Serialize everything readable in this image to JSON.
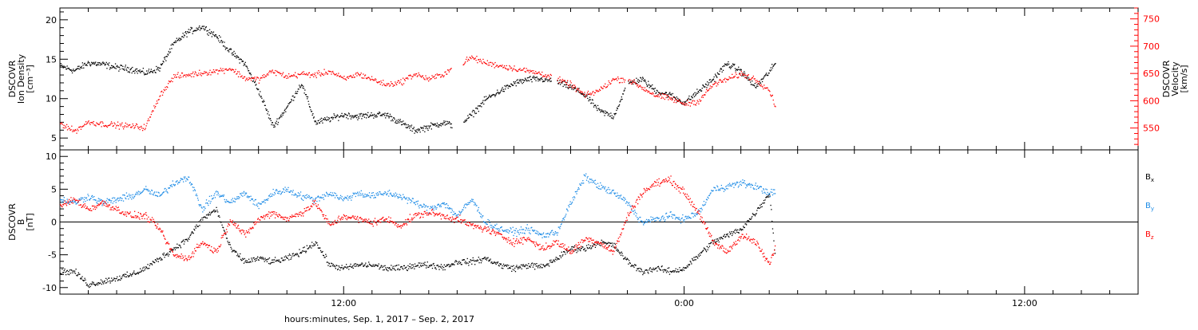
{
  "colors": {
    "black": "#000000",
    "red": "#ff0000",
    "blue": "#1e8ce6",
    "axis": "#000000"
  },
  "figure": {
    "xlabel": "hours:minutes, Sep. 1, 2017 – Sep. 2, 2017",
    "x_tick_labels": [
      "12:00",
      "0:00",
      "12:00"
    ],
    "x_tick_hours": [
      12,
      24,
      36
    ],
    "x_range_hours": [
      2.0,
      40.0
    ],
    "x_unit": "hours since Sep. 1, 2017 00:00"
  },
  "chart_data": [
    {
      "type": "scatter",
      "panel": "plasma",
      "left_axis": {
        "label_lines": [
          "DSCOVR",
          "Ion Density",
          "[cm⁻³]"
        ],
        "ylim": [
          3.5,
          21.5
        ],
        "major_ticks": [
          5,
          10,
          15,
          20
        ],
        "tick_labels": [
          "5",
          "10",
          "15",
          "20"
        ]
      },
      "right_axis": {
        "label_lines": [
          "DSCOVR",
          "Velocity",
          "[km/s]"
        ],
        "ylim": [
          510,
          770
        ],
        "major_ticks": [
          550,
          600,
          650,
          700,
          750
        ],
        "tick_labels": [
          "550",
          "600",
          "650",
          "700",
          "750"
        ],
        "color": "red"
      },
      "grid": false,
      "series": [
        {
          "name": "",
          "color": "black",
          "axis": "left",
          "spread": 0.6,
          "x": [
            2.0,
            2.5,
            3.0,
            3.5,
            4.0,
            4.5,
            5.0,
            5.5,
            6.0,
            6.5,
            7.0,
            7.5,
            8.0,
            8.5,
            9.0,
            9.5,
            10.0,
            10.5,
            11.0,
            11.5,
            12.0,
            12.5,
            13.0,
            13.5,
            14.0,
            14.5,
            15.0,
            15.5,
            16.0,
            16.5,
            17.0,
            17.5,
            18.0,
            18.5,
            19.0,
            19.5,
            20.0,
            20.5,
            21.0,
            21.5,
            22.0,
            22.5,
            23.0,
            23.5,
            24.0,
            24.5,
            25.0,
            25.5,
            26.0,
            26.5,
            27.0,
            27.2
          ],
          "y": [
            14.2,
            13.6,
            14.6,
            14.4,
            14.0,
            13.8,
            13.3,
            13.9,
            17.0,
            18.5,
            19.2,
            18.0,
            16.0,
            14.5,
            11.0,
            6.5,
            9.0,
            12.0,
            7.0,
            7.5,
            8.0,
            7.8,
            8.0,
            8.0,
            7.0,
            6.0,
            6.5,
            7.0,
            6.5,
            8.0,
            10.0,
            11.0,
            12.0,
            12.5,
            12.5,
            12.2,
            11.5,
            10.5,
            8.5,
            7.8,
            12.0,
            12.5,
            11.0,
            10.5,
            9.5,
            11.0,
            12.5,
            14.5,
            13.5,
            11.5,
            13.5,
            14.5
          ],
          "gaps": [
            [
              15.8,
              16.2
            ],
            [
              19.3,
              19.5
            ],
            [
              21.9,
              22.0
            ]
          ]
        },
        {
          "name": "",
          "color": "red",
          "axis": "right",
          "spread": 8,
          "x": [
            2.0,
            2.5,
            3.0,
            3.5,
            4.0,
            4.5,
            5.0,
            5.5,
            6.0,
            6.5,
            7.0,
            7.5,
            8.0,
            8.5,
            9.0,
            9.5,
            10.0,
            10.5,
            11.0,
            11.5,
            12.0,
            12.5,
            13.0,
            13.5,
            14.0,
            14.5,
            15.0,
            15.5,
            16.0,
            16.5,
            17.0,
            17.5,
            18.0,
            18.5,
            19.0,
            19.5,
            20.0,
            20.5,
            21.0,
            21.5,
            22.0,
            22.5,
            23.0,
            23.5,
            24.0,
            24.5,
            25.0,
            25.5,
            26.0,
            26.5,
            27.0,
            27.2
          ],
          "y": [
            560,
            545,
            562,
            558,
            556,
            554,
            552,
            610,
            645,
            648,
            652,
            655,
            660,
            642,
            640,
            655,
            645,
            650,
            648,
            655,
            640,
            650,
            640,
            630,
            635,
            650,
            640,
            650,
            665,
            680,
            670,
            665,
            660,
            655,
            650,
            640,
            630,
            610,
            620,
            640,
            640,
            625,
            610,
            605,
            595,
            600,
            630,
            640,
            650,
            640,
            620,
            590
          ],
          "gaps": [
            [
              15.8,
              16.2
            ],
            [
              19.3,
              19.5
            ],
            [
              21.9,
              22.0
            ]
          ]
        }
      ]
    },
    {
      "type": "scatter",
      "panel": "magnetic",
      "left_axis": {
        "label_lines": [
          "DSCOVR",
          "B",
          "[nT]"
        ],
        "ylim": [
          -11,
          11
        ],
        "major_ticks": [
          -10,
          -5,
          0,
          5,
          10
        ],
        "tick_labels": [
          "-10",
          "-5",
          "0",
          "5",
          "10"
        ]
      },
      "zero_line": true,
      "grid": false,
      "series": [
        {
          "name": "Bx",
          "color": "black",
          "spread": 0.7,
          "x": [
            2.0,
            2.5,
            3.0,
            3.5,
            4.0,
            4.5,
            5.0,
            5.5,
            6.0,
            6.5,
            7.0,
            7.5,
            8.0,
            8.5,
            9.0,
            9.5,
            10.0,
            10.5,
            11.0,
            11.5,
            12.0,
            12.5,
            13.0,
            13.5,
            14.0,
            14.5,
            15.0,
            15.5,
            16.0,
            16.5,
            17.0,
            17.5,
            18.0,
            18.5,
            19.0,
            19.5,
            20.0,
            20.5,
            21.0,
            21.5,
            22.0,
            22.5,
            23.0,
            23.5,
            24.0,
            24.5,
            25.0,
            25.5,
            26.0,
            26.5,
            27.0,
            27.2
          ],
          "y": [
            -7.5,
            -7.5,
            -9.5,
            -9.0,
            -8.5,
            -8.0,
            -7.0,
            -5.5,
            -4.0,
            -2.5,
            0.5,
            2.0,
            -4.0,
            -6.0,
            -5.5,
            -6.0,
            -5.5,
            -4.5,
            -3.0,
            -6.5,
            -7.0,
            -6.5,
            -6.5,
            -7.0,
            -7.0,
            -6.5,
            -6.5,
            -6.8,
            -6.0,
            -6.0,
            -5.5,
            -6.5,
            -7.0,
            -6.5,
            -6.8,
            -5.5,
            -4.0,
            -4.0,
            -3.0,
            -3.5,
            -6.0,
            -7.5,
            -7.0,
            -7.5,
            -7.0,
            -5.0,
            -3.0,
            -2.0,
            -1.0,
            1.5,
            4.5,
            -5.5
          ]
        },
        {
          "name": "By",
          "color": "blue",
          "spread": 0.8,
          "x": [
            2.0,
            2.5,
            3.0,
            3.5,
            4.0,
            4.5,
            5.0,
            5.5,
            6.0,
            6.5,
            7.0,
            7.5,
            8.0,
            8.5,
            9.0,
            9.5,
            10.0,
            10.5,
            11.0,
            11.5,
            12.0,
            12.5,
            13.0,
            13.5,
            14.0,
            14.5,
            15.0,
            15.5,
            16.0,
            16.5,
            17.0,
            17.5,
            18.0,
            18.5,
            19.0,
            19.5,
            20.0,
            20.5,
            21.0,
            21.5,
            22.0,
            22.5,
            23.0,
            23.5,
            24.0,
            24.5,
            25.0,
            25.5,
            26.0,
            26.5,
            27.0,
            27.2
          ],
          "y": [
            3.5,
            3.0,
            4.0,
            3.0,
            3.5,
            4.0,
            5.0,
            4.0,
            6.0,
            7.0,
            2.0,
            4.5,
            3.0,
            4.5,
            2.5,
            4.5,
            5.0,
            4.0,
            3.5,
            4.5,
            3.5,
            4.5,
            4.0,
            4.5,
            4.0,
            3.0,
            2.0,
            3.0,
            1.0,
            3.5,
            0.0,
            -1.0,
            -1.5,
            -1.0,
            -2.0,
            -1.5,
            3.0,
            7.0,
            5.5,
            4.5,
            3.0,
            0.0,
            0.5,
            1.0,
            0.5,
            1.5,
            5.0,
            5.5,
            6.0,
            5.5,
            4.5,
            4.5
          ]
        },
        {
          "name": "Bz",
          "color": "red",
          "spread": 0.8,
          "x": [
            2.0,
            2.5,
            3.0,
            3.5,
            4.0,
            4.5,
            5.0,
            5.5,
            6.0,
            6.5,
            7.0,
            7.5,
            8.0,
            8.5,
            9.0,
            9.5,
            10.0,
            10.5,
            11.0,
            11.5,
            12.0,
            12.5,
            13.0,
            13.5,
            14.0,
            14.5,
            15.0,
            15.5,
            16.0,
            16.5,
            17.0,
            17.5,
            18.0,
            18.5,
            19.0,
            19.5,
            20.0,
            20.5,
            21.0,
            21.5,
            22.0,
            22.5,
            23.0,
            23.5,
            24.0,
            24.5,
            25.0,
            25.5,
            26.0,
            26.5,
            27.0,
            27.2
          ],
          "y": [
            2.5,
            3.5,
            2.0,
            3.0,
            2.0,
            1.0,
            1.0,
            -1.0,
            -5.0,
            -5.5,
            -3.0,
            -4.5,
            0.5,
            -2.0,
            0.5,
            1.5,
            0.5,
            1.5,
            3.0,
            -0.5,
            1.0,
            0.5,
            0.0,
            0.5,
            -0.5,
            1.0,
            1.5,
            1.0,
            0.5,
            -0.5,
            -1.0,
            -2.0,
            -3.0,
            -2.5,
            -4.0,
            -3.0,
            -4.5,
            -2.5,
            -3.0,
            -4.5,
            1.0,
            4.5,
            6.0,
            6.5,
            4.5,
            1.5,
            -3.0,
            -4.5,
            -2.0,
            -3.0,
            -6.5,
            -3.5
          ]
        }
      ],
      "legend": {
        "placement": "right",
        "entries": [
          {
            "base": "B",
            "sub": "x",
            "color": "black"
          },
          {
            "base": "B",
            "sub": "y",
            "color": "blue"
          },
          {
            "base": "B",
            "sub": "z",
            "color": "red"
          }
        ]
      }
    }
  ]
}
